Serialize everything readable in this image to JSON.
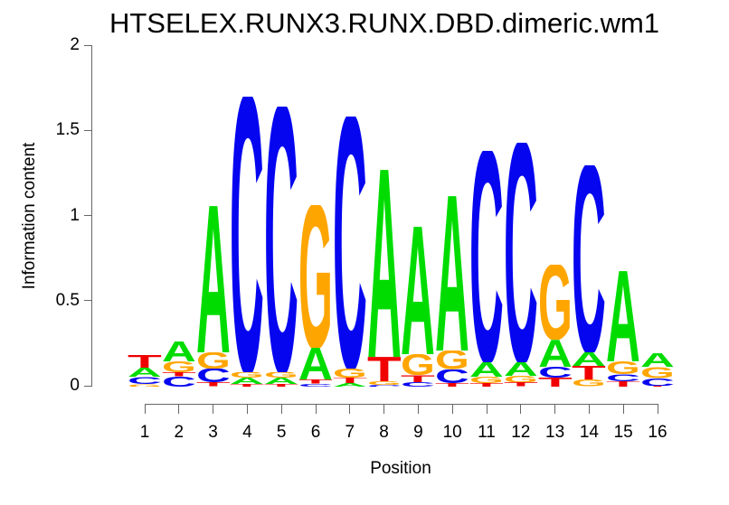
{
  "chart_data": {
    "type": "sequence-logo",
    "title": "HTSELEX.RUNX3.RUNX.DBD.dimeric.wm1",
    "xlabel": "Position",
    "ylabel": "Information content",
    "ylim": [
      0,
      2
    ],
    "yticks": [
      0,
      0.5,
      1,
      1.5,
      2
    ],
    "xticks": [
      1,
      2,
      3,
      4,
      5,
      6,
      7,
      8,
      9,
      10,
      11,
      12,
      13,
      14,
      15,
      16
    ],
    "legend": "none",
    "grid": "off",
    "base_colors": {
      "A": "#00dc00",
      "C": "#0505f0",
      "G": "#ffa500",
      "T": "#f00000"
    },
    "axis_color": "#666666",
    "stack_order": "top-to-bottom",
    "positions": [
      {
        "position": 1,
        "stack": [
          {
            "base": "T",
            "ic": 0.075
          },
          {
            "base": "A",
            "ic": 0.053
          },
          {
            "base": "C",
            "ic": 0.042
          },
          {
            "base": "G",
            "ic": 0.018
          }
        ]
      },
      {
        "position": 2,
        "stack": [
          {
            "base": "A",
            "ic": 0.117
          },
          {
            "base": "G",
            "ic": 0.064
          },
          {
            "base": "T",
            "ic": 0.025
          },
          {
            "base": "C",
            "ic": 0.058
          }
        ]
      },
      {
        "position": 3,
        "stack": [
          {
            "base": "A",
            "ic": 0.86
          },
          {
            "base": "G",
            "ic": 0.095
          },
          {
            "base": "C",
            "ic": 0.08
          },
          {
            "base": "T",
            "ic": 0.025
          }
        ]
      },
      {
        "position": 4,
        "stack": [
          {
            "base": "C",
            "ic": 1.62
          },
          {
            "base": "G",
            "ic": 0.032
          },
          {
            "base": "A",
            "ic": 0.037
          },
          {
            "base": "T",
            "ic": 0.015
          }
        ]
      },
      {
        "position": 5,
        "stack": [
          {
            "base": "C",
            "ic": 1.56
          },
          {
            "base": "G",
            "ic": 0.032
          },
          {
            "base": "A",
            "ic": 0.037
          },
          {
            "base": "T",
            "ic": 0.015
          }
        ]
      },
      {
        "position": 6,
        "stack": [
          {
            "base": "G",
            "ic": 0.84
          },
          {
            "base": "A",
            "ic": 0.186
          },
          {
            "base": "T",
            "ic": 0.025
          },
          {
            "base": "C",
            "ic": 0.015
          }
        ]
      },
      {
        "position": 7,
        "stack": [
          {
            "base": "C",
            "ic": 1.48
          },
          {
            "base": "G",
            "ic": 0.053
          },
          {
            "base": "T",
            "ic": 0.032
          },
          {
            "base": "A",
            "ic": 0.021
          }
        ]
      },
      {
        "position": 8,
        "stack": [
          {
            "base": "A",
            "ic": 1.1
          },
          {
            "base": "T",
            "ic": 0.143
          },
          {
            "base": "G",
            "ic": 0.02
          },
          {
            "base": "C",
            "ic": 0.012
          }
        ]
      },
      {
        "position": 9,
        "stack": [
          {
            "base": "A",
            "ic": 0.75
          },
          {
            "base": "G",
            "ic": 0.122
          },
          {
            "base": "T",
            "ic": 0.042
          },
          {
            "base": "C",
            "ic": 0.027
          }
        ]
      },
      {
        "position": 10,
        "stack": [
          {
            "base": "A",
            "ic": 0.91
          },
          {
            "base": "G",
            "ic": 0.11
          },
          {
            "base": "C",
            "ic": 0.08
          },
          {
            "base": "T",
            "ic": 0.02
          }
        ]
      },
      {
        "position": 11,
        "stack": [
          {
            "base": "C",
            "ic": 1.24
          },
          {
            "base": "A",
            "ic": 0.085
          },
          {
            "base": "G",
            "ic": 0.037
          },
          {
            "base": "T",
            "ic": 0.021
          }
        ]
      },
      {
        "position": 12,
        "stack": [
          {
            "base": "C",
            "ic": 1.29
          },
          {
            "base": "A",
            "ic": 0.08
          },
          {
            "base": "G",
            "ic": 0.04
          },
          {
            "base": "T",
            "ic": 0.025
          }
        ]
      },
      {
        "position": 13,
        "stack": [
          {
            "base": "G",
            "ic": 0.44
          },
          {
            "base": "A",
            "ic": 0.16
          },
          {
            "base": "C",
            "ic": 0.064
          },
          {
            "base": "T",
            "ic": 0.053
          }
        ]
      },
      {
        "position": 14,
        "stack": [
          {
            "base": "C",
            "ic": 1.1
          },
          {
            "base": "A",
            "ic": 0.08
          },
          {
            "base": "T",
            "ic": 0.08
          },
          {
            "base": "G",
            "ic": 0.04
          }
        ]
      },
      {
        "position": 15,
        "stack": [
          {
            "base": "A",
            "ic": 0.53
          },
          {
            "base": "G",
            "ic": 0.074
          },
          {
            "base": "C",
            "ic": 0.042
          },
          {
            "base": "T",
            "ic": 0.032
          }
        ]
      },
      {
        "position": 16,
        "stack": [
          {
            "base": "A",
            "ic": 0.08
          },
          {
            "base": "G",
            "ic": 0.065
          },
          {
            "base": "C",
            "ic": 0.045
          },
          {
            "base": "T",
            "ic": 0.005
          }
        ]
      }
    ]
  }
}
